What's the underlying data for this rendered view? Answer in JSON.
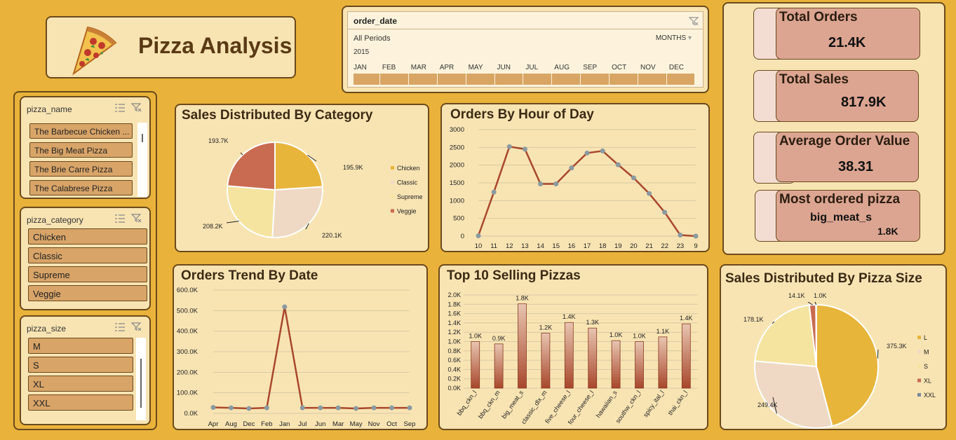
{
  "title": "Pizza Analysis",
  "timeline": {
    "field": "order_date",
    "periods": "All Periods",
    "level": "MONTHS",
    "year": "2015",
    "months": [
      "JAN",
      "FEB",
      "MAR",
      "APR",
      "MAY",
      "JUN",
      "JUL",
      "AUG",
      "SEP",
      "OCT",
      "NOV",
      "DEC"
    ]
  },
  "slicers": {
    "pizza_name": {
      "header": "pizza_name",
      "items": [
        "The Barbecue Chicken ...",
        "The Big Meat Pizza",
        "The Brie Carre Pizza",
        "The Calabrese Pizza"
      ]
    },
    "pizza_category": {
      "header": "pizza_category",
      "items": [
        "Chicken",
        "Classic",
        "Supreme",
        "Veggie"
      ]
    },
    "pizza_size": {
      "header": "pizza_size",
      "items": [
        "M",
        "S",
        "XL",
        "XXL"
      ]
    }
  },
  "kpis": {
    "total_orders": {
      "label": "Total Orders",
      "value": "21.4K"
    },
    "total_sales": {
      "label": "Total Sales",
      "value": "817.9K"
    },
    "avg_order_value": {
      "label": "Average Order Value",
      "value": "38.31"
    },
    "most_ordered": {
      "label": "Most ordered pizza",
      "value": "big_meat_s",
      "sub_value": "1.8K"
    }
  },
  "colors": {
    "background": "#e9b23a",
    "panel": "#f8e4b3",
    "chicken": "#e8b53b",
    "classic": "#efd9c4",
    "supreme": "#f5e3a0",
    "veggie": "#c96b50",
    "line": "#a8472c",
    "marker": "#8a9aa0"
  },
  "chart_data": [
    {
      "id": "category",
      "type": "pie",
      "title": "Sales Distributed By Category",
      "labels": [
        "Chicken",
        "Classic",
        "Supreme",
        "Veggie"
      ],
      "values": [
        195.9,
        220.1,
        208.2,
        193.7
      ],
      "data_labels": [
        "195.9K",
        "220.1K",
        "208.2K",
        "193.7K"
      ],
      "legend": "right"
    },
    {
      "id": "hourly",
      "type": "line",
      "title": "Orders By Hour of Day",
      "x": [
        "10",
        "11",
        "12",
        "13",
        "14",
        "15",
        "16",
        "17",
        "18",
        "19",
        "20",
        "21",
        "22",
        "23",
        "9"
      ],
      "values": [
        10,
        1240,
        2520,
        2450,
        1470,
        1470,
        1920,
        2340,
        2400,
        2010,
        1640,
        1200,
        670,
        30,
        0
      ],
      "ylim": [
        0,
        3000
      ],
      "yticks": [
        "0",
        "500",
        "1000",
        "1500",
        "2000",
        "2500",
        "3000"
      ],
      "grid": true
    },
    {
      "id": "trend",
      "type": "line",
      "title": "Orders Trend By Date",
      "x": [
        "Apr",
        "Aug",
        "Dec",
        "Feb",
        "Jan",
        "Jul",
        "Jun",
        "Mar",
        "May",
        "Nov",
        "Oct",
        "Sep"
      ],
      "values": [
        29,
        27,
        24,
        27,
        518,
        27,
        27,
        27,
        24,
        27,
        27,
        27
      ],
      "ylim": [
        0,
        600
      ],
      "yticks": [
        "0.0K",
        "100.0K",
        "200.0K",
        "300.0K",
        "400.0K",
        "500.0K",
        "600.0K"
      ],
      "grid": true
    },
    {
      "id": "top10",
      "type": "bar",
      "title": "Top 10 Selling Pizzas",
      "categories": [
        "bbq_ckn_l",
        "bbq_ckn_m",
        "big_meat_s",
        "classic_dlx_m",
        "five_cheese_l",
        "four_cheese_l",
        "hawaiian_s",
        "southw_ckn_l",
        "spicy_ital_l",
        "thai_ckn_l"
      ],
      "values": [
        1.0,
        0.95,
        1.81,
        1.18,
        1.41,
        1.29,
        1.02,
        1.0,
        1.1,
        1.38
      ],
      "data_labels": [
        "1.0K",
        "0.9K",
        "1.8K",
        "1.2K",
        "1.4K",
        "1.3K",
        "1.0K",
        "1.0K",
        "1.1K",
        "1.4K"
      ],
      "ylim": [
        0,
        2.0
      ],
      "yticks": [
        "0.0K",
        "0.2K",
        "0.4K",
        "0.6K",
        "0.8K",
        "1.0K",
        "1.2K",
        "1.4K",
        "1.6K",
        "1.8K",
        "2.0K"
      ],
      "grid": true
    },
    {
      "id": "size",
      "type": "pie",
      "title": "Sales Distributed By Pizza Size",
      "labels": [
        "L",
        "M",
        "S",
        "XL",
        "XXL"
      ],
      "values": [
        375.3,
        249.4,
        178.1,
        14.1,
        1.0
      ],
      "data_labels": [
        "375.3K",
        "249.4K",
        "178.1K",
        "14.1K",
        "1.0K"
      ],
      "legend": "right"
    }
  ]
}
